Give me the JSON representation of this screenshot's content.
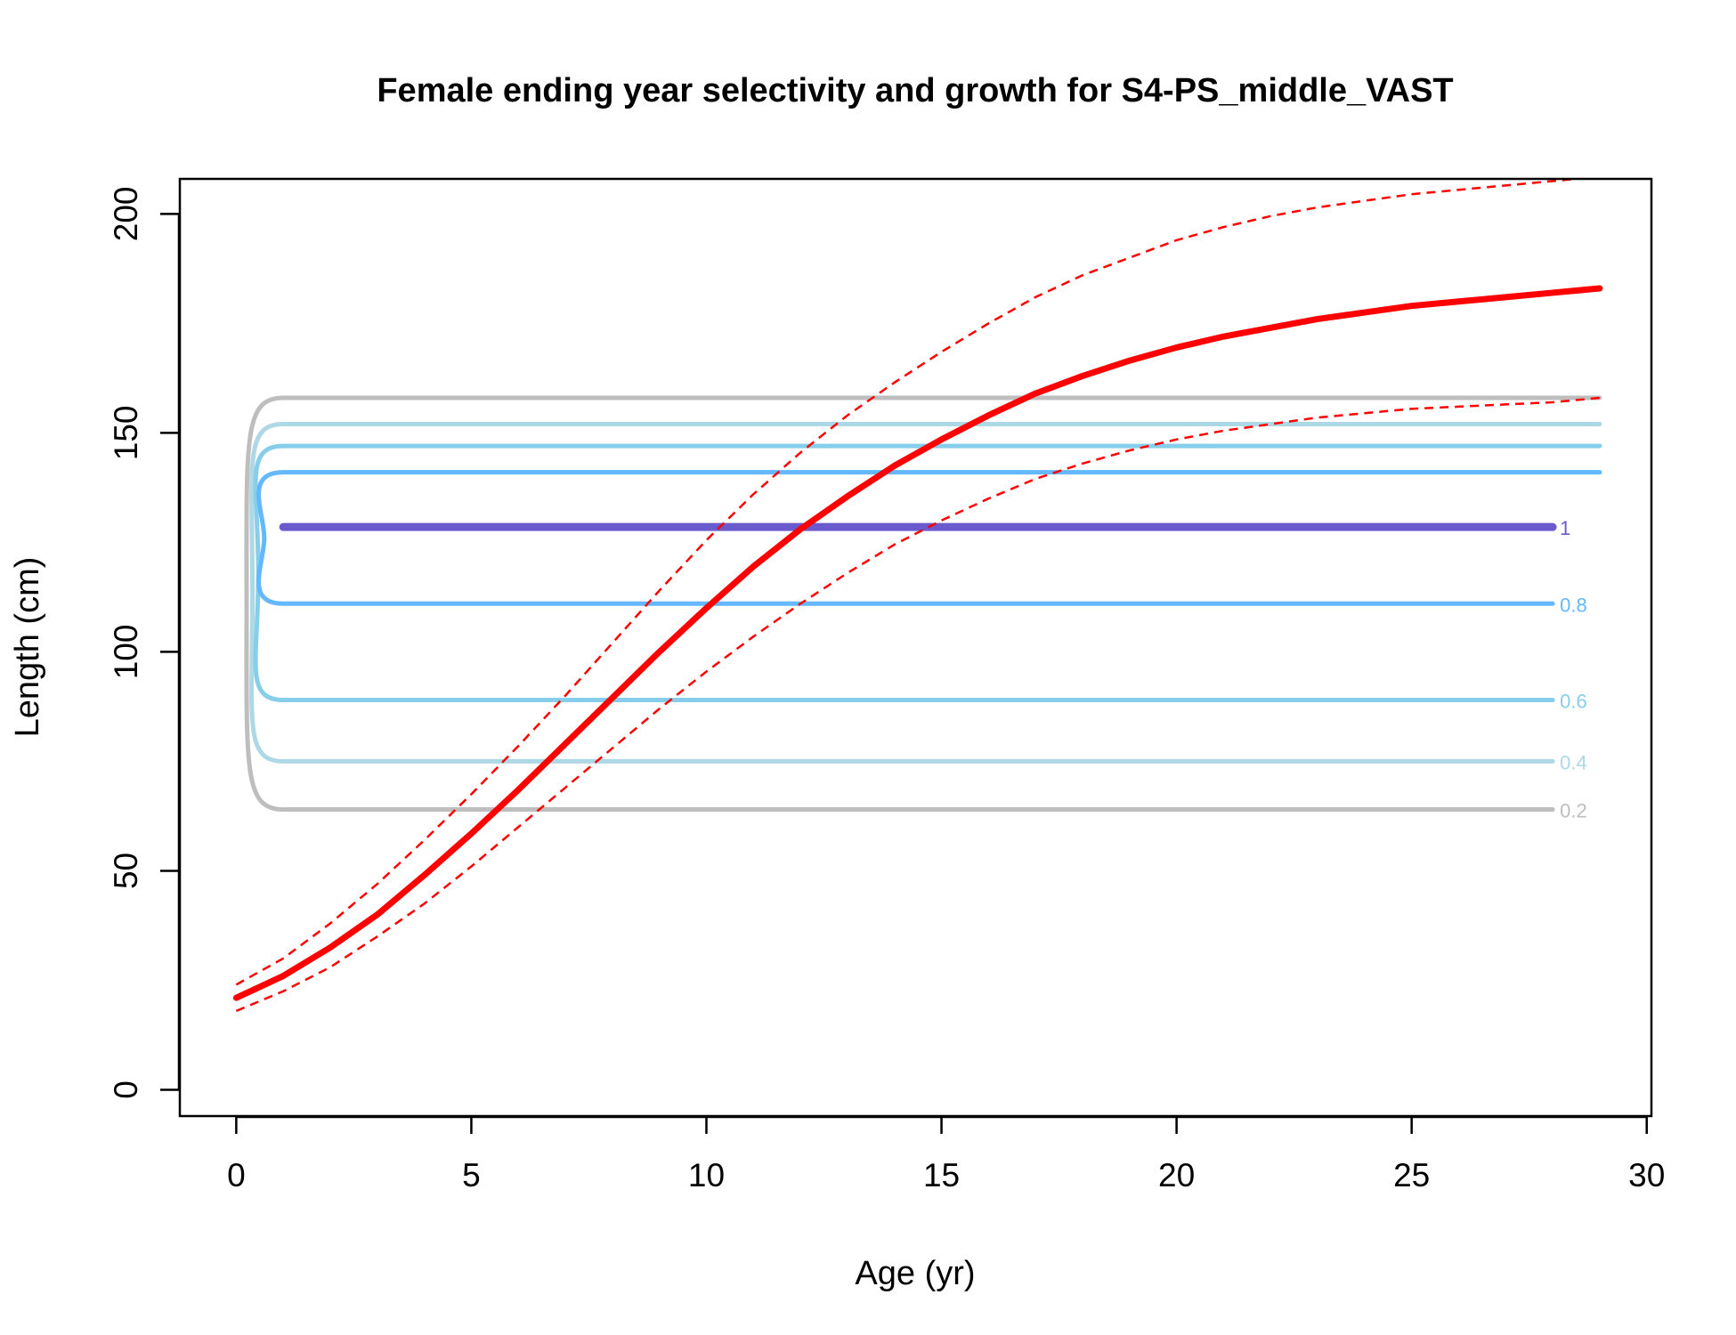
{
  "chart_data": {
    "type": "line",
    "title": "Female ending year selectivity and growth for S4-PS_middle_VAST",
    "xlabel": "Age (yr)",
    "ylabel": "Length (cm)",
    "xlim": [
      -1.2,
      30.1
    ],
    "ylim": [
      -6,
      208
    ],
    "x_ticks": [
      "0",
      "5",
      "10",
      "15",
      "20",
      "25",
      "30"
    ],
    "y_ticks": [
      "0",
      "50",
      "100",
      "150",
      "200"
    ],
    "grid": false,
    "growth": {
      "color": "#ff0000",
      "ages": [
        0,
        1,
        2,
        3,
        4,
        5,
        6,
        7,
        8,
        9,
        10,
        11,
        12,
        13,
        14,
        15,
        16,
        17,
        18,
        19,
        20,
        21,
        22,
        23,
        24,
        25,
        26,
        27,
        28,
        29
      ],
      "mean": [
        21,
        26,
        32.5,
        40,
        49,
        58.5,
        68.5,
        79,
        89.5,
        100,
        110,
        119.5,
        128,
        135.5,
        142.5,
        148.5,
        154,
        159,
        163,
        166.5,
        169.5,
        172,
        174,
        176,
        177.5,
        179,
        180,
        181,
        182,
        183
      ],
      "upper": [
        24,
        30,
        38,
        47,
        57,
        67.5,
        78.5,
        90,
        102,
        114,
        125.5,
        136,
        145.5,
        154,
        161.5,
        168.5,
        175,
        181,
        186,
        190,
        194,
        197,
        199.5,
        201.5,
        203,
        204.5,
        205.5,
        206.5,
        207.5,
        208.5
      ],
      "lower": [
        18,
        22.5,
        28,
        35,
        42.5,
        51,
        60,
        69,
        78,
        87,
        95.5,
        103.5,
        111,
        118,
        124.5,
        130,
        135,
        139.5,
        143,
        146,
        148.5,
        150.5,
        152,
        153.5,
        154.5,
        155.5,
        156,
        156.5,
        157,
        158
      ]
    },
    "contours": [
      {
        "label": "0.2",
        "color": "#bebebe",
        "y_high": 158,
        "y_low": 64,
        "width": 5
      },
      {
        "label": "0.4",
        "color": "#add8e6",
        "y_high": 152,
        "y_low": 75,
        "width": 5
      },
      {
        "label": "0.6",
        "color": "#87ceeb",
        "y_high": 147,
        "y_low": 89,
        "width": 5
      },
      {
        "label": "0.8",
        "color": "#63b8ff",
        "y_high": 141,
        "y_low": 111,
        "width": 5
      },
      {
        "label": "1",
        "color": "#6a5acd",
        "y_high": 128.5,
        "y_low": 128.5,
        "width": 9
      }
    ],
    "contour_x": {
      "start": 1,
      "end": 29,
      "label_end": 28
    }
  }
}
